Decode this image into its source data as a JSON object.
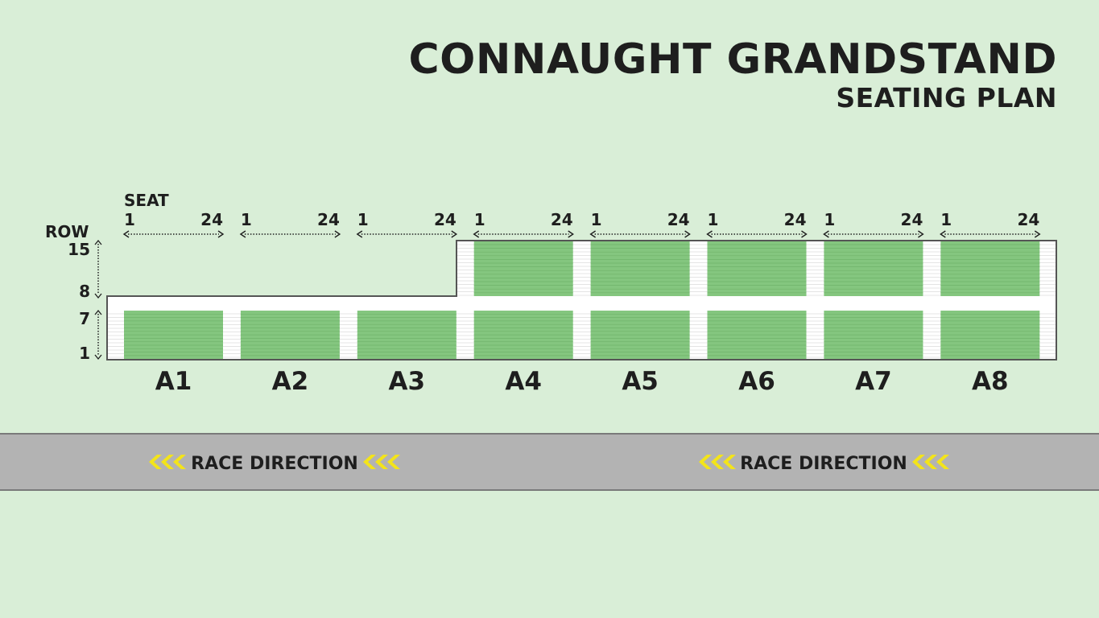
{
  "title": {
    "main": "CONNAUGHT GRANDSTAND",
    "sub": "SEATING PLAN"
  },
  "labels": {
    "seat": "SEAT",
    "row": "ROW",
    "seat_start": "1",
    "seat_end": "24"
  },
  "row_marks": [
    "15",
    "8",
    "7",
    "1"
  ],
  "blocks": [
    "A1",
    "A2",
    "A3",
    "A4",
    "A5",
    "A6",
    "A7",
    "A8"
  ],
  "upper_tier_blocks": [
    "A4",
    "A5",
    "A6",
    "A7",
    "A8"
  ],
  "track": {
    "direction_label": "RACE DIRECTION",
    "chevrons": "‹‹‹",
    "direction_count": 2
  },
  "colors": {
    "background": "#d9eed7",
    "seats": "#84c67f",
    "seat_lines": "#6fb36a",
    "aisle": "#ffffff",
    "track": "#b3b3b3",
    "chevron": "#f3e41a",
    "text": "#1e1e1e"
  }
}
